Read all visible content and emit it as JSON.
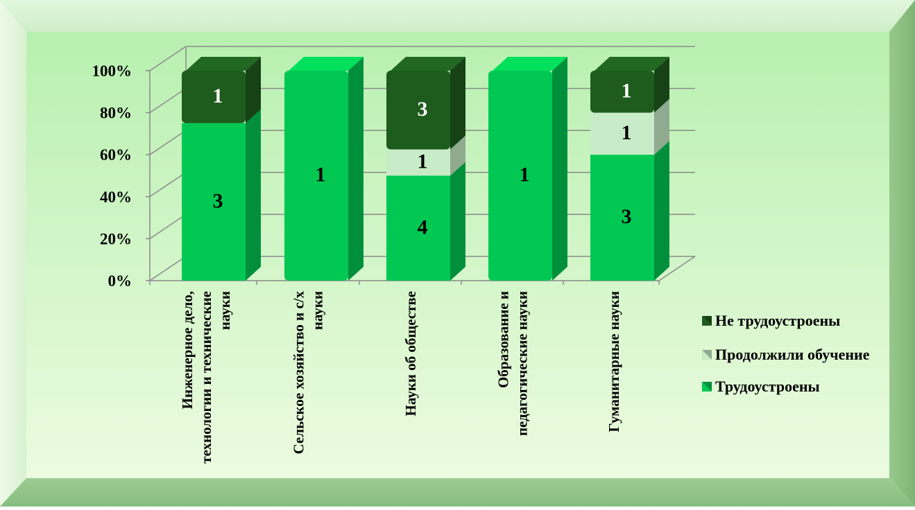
{
  "chart_data": {
    "type": "bar",
    "stacked": "percent",
    "view": "3d",
    "title": "",
    "xlabel": "",
    "ylabel": "",
    "ylim": [
      0,
      100
    ],
    "y_ticks": [
      "0%",
      "20%",
      "40%",
      "60%",
      "80%",
      "100%"
    ],
    "categories": [
      [
        "Инженерное дело,",
        "технологии и технические",
        "науки"
      ],
      [
        "Сельское хозяйство и с/х",
        "науки"
      ],
      [
        "Науки об обществе"
      ],
      [
        "Образование и",
        "педагогические науки"
      ],
      [
        "Гуманитарные науки"
      ]
    ],
    "series": [
      {
        "name": "Трудоустроены",
        "values": [
          3,
          1,
          4,
          1,
          3
        ],
        "color": "#00c853"
      },
      {
        "name": "Продолжили обучение",
        "values": [
          0,
          0,
          1,
          0,
          1
        ],
        "color": "#c8ecc8"
      },
      {
        "name": "Не трудоустроены",
        "values": [
          1,
          0,
          3,
          0,
          1
        ],
        "color": "#1e5c1e"
      }
    ],
    "legend": {
      "position": "right",
      "order": [
        "Не трудоустроены",
        "Продолжили обучение",
        "Трудоустроены"
      ]
    },
    "grid": true,
    "data_labels": true
  }
}
